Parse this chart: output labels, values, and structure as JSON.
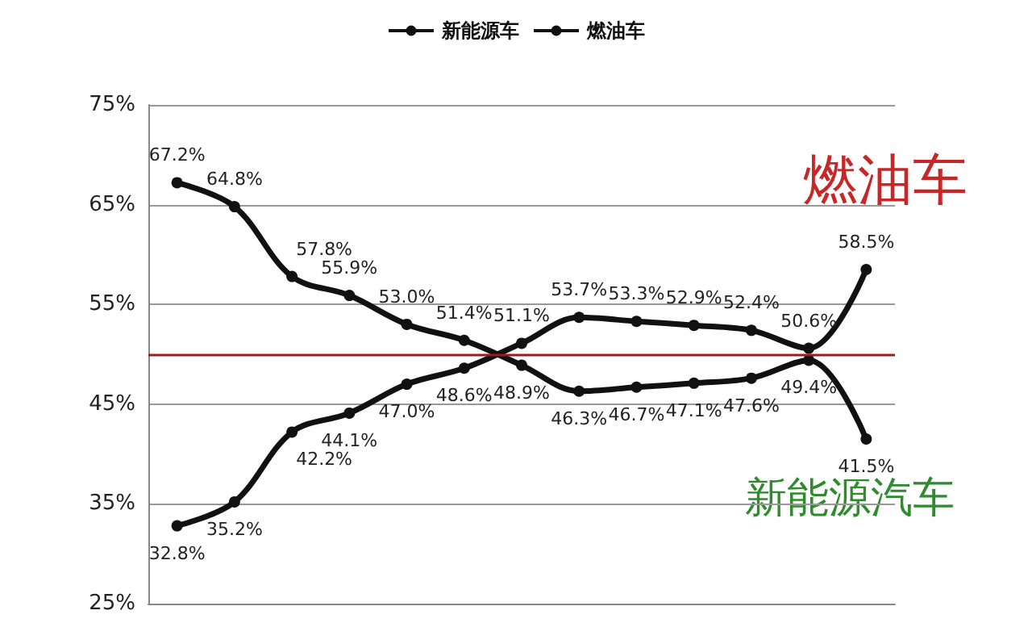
{
  "chart_data": {
    "type": "line",
    "categories": [
      null,
      null,
      null,
      null,
      null,
      null,
      null,
      null,
      null,
      null,
      null,
      null,
      null
    ],
    "series": [
      {
        "name": "新能源车",
        "color": "#111111",
        "values": [
          32.8,
          35.2,
          42.2,
          44.1,
          47.0,
          48.6,
          51.1,
          53.7,
          53.3,
          52.9,
          52.4,
          50.6,
          58.5
        ],
        "value_labels": [
          "32.8%",
          "35.2%",
          "42.2%",
          "44.1%",
          "47.0%",
          "48.6%",
          "51.1%",
          "53.7%",
          "53.3%",
          "52.9%",
          "52.4%",
          "50.6%",
          "58.5%"
        ]
      },
      {
        "name": "燃油车",
        "color": "#111111",
        "values": [
          67.2,
          64.8,
          57.8,
          55.9,
          53.0,
          51.4,
          48.9,
          46.3,
          46.7,
          47.1,
          47.6,
          49.4,
          41.5
        ],
        "value_labels": [
          "67.2%",
          "64.8%",
          "57.8%",
          "55.9%",
          "53.0%",
          "51.4%",
          "48.9%",
          "46.3%",
          "46.7%",
          "47.1%",
          "47.6%",
          "49.4%",
          "41.5%"
        ]
      }
    ],
    "ylim": [
      25,
      75
    ],
    "yticks": [
      {
        "value": 25,
        "label": "25%"
      },
      {
        "value": 35,
        "label": "35%"
      },
      {
        "value": 45,
        "label": "45%"
      },
      {
        "value": 55,
        "label": "55%"
      },
      {
        "value": 65,
        "label": "65%"
      },
      {
        "value": 75,
        "label": "75%"
      }
    ],
    "ref_lines": [
      {
        "axis": "y",
        "value": 50,
        "label": null,
        "color": "#9b1c1c"
      }
    ],
    "annotations": [
      "燃油车",
      "新能源汽车"
    ],
    "grid": "y",
    "legend": "top",
    "marker": "circle",
    "line_style": "solid"
  }
}
